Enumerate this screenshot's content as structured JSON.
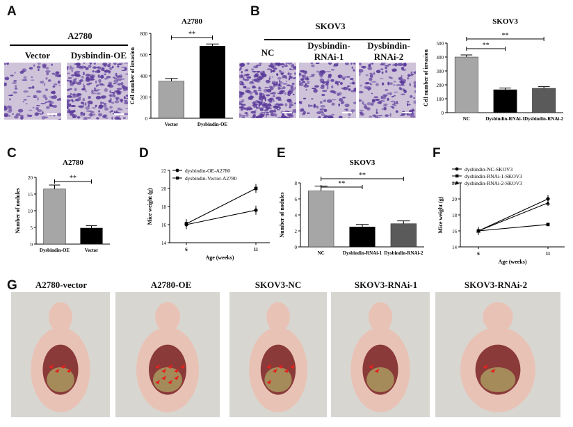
{
  "panel_letters": {
    "a": "A",
    "b": "B",
    "c": "C",
    "d": "D",
    "e": "E",
    "f": "F",
    "g": "G"
  },
  "panelA": {
    "cell_line": "A2780",
    "labels": [
      "Vector",
      "Dysbindin-OE"
    ]
  },
  "panelB": {
    "cell_line": "SKOV3",
    "labels": [
      "NC",
      "Dysbindin-\nRNAi-1",
      "Dysbindin-\nRNAi-2"
    ]
  },
  "panelG": {
    "labels": [
      "A2780-vector",
      "A2780-OE",
      "SKOV3-NC",
      "SKOV3-RNAi-1",
      "SKOV3-RNAi-2"
    ]
  },
  "colors": {
    "gray": "#a6a6a6",
    "black": "#000000",
    "dark_gray": "#5a5a5a",
    "micro_bg": "#cfc3da",
    "micro_dot": "#5a3a9a"
  },
  "chart_data": [
    {
      "id": "A",
      "type": "bar",
      "title": "A2780",
      "categories": [
        "Vector",
        "Dysbindin-OE"
      ],
      "values": [
        350,
        680
      ],
      "errors": [
        25,
        20
      ],
      "ylabel": "Cell number of invasion",
      "ylim": [
        0,
        800
      ],
      "yticks": [
        0,
        200,
        400,
        600,
        800
      ],
      "significance": [
        {
          "from": 0,
          "to": 1,
          "label": "**"
        }
      ],
      "bar_colors": [
        "#a6a6a6",
        "#000000"
      ]
    },
    {
      "id": "B",
      "type": "bar",
      "title": "SKOV3",
      "categories": [
        "NC",
        "Dysbindin-RNAi-1",
        "Dysbindin-RNAi-2"
      ],
      "values": [
        400,
        165,
        175
      ],
      "errors": [
        15,
        12,
        12
      ],
      "ylabel": "Cell number of invasion",
      "ylim": [
        0,
        500
      ],
      "yticks": [
        0,
        100,
        200,
        300,
        400,
        500
      ],
      "significance": [
        {
          "from": 0,
          "to": 1,
          "label": "**"
        },
        {
          "from": 0,
          "to": 2,
          "label": "**"
        }
      ],
      "bar_colors": [
        "#a6a6a6",
        "#000000",
        "#5a5a5a"
      ]
    },
    {
      "id": "C",
      "type": "bar",
      "title": "A2780",
      "categories": [
        "Dysbindin-OE",
        "Vector"
      ],
      "values": [
        16.5,
        4.8
      ],
      "errors": [
        1.2,
        0.7
      ],
      "ylabel": "Number of nodules",
      "ylim": [
        0,
        20
      ],
      "yticks": [
        0,
        5,
        10,
        15,
        20
      ],
      "significance": [
        {
          "from": 0,
          "to": 1,
          "label": "**"
        }
      ],
      "bar_colors": [
        "#a6a6a6",
        "#000000"
      ]
    },
    {
      "id": "D",
      "type": "line",
      "x_categories": [
        "6",
        "11"
      ],
      "xlabel": "Age (weeks)",
      "ylabel": "Mice weight (g)",
      "ylim": [
        14,
        22
      ],
      "yticks": [
        14,
        16,
        18,
        20,
        22
      ],
      "series": [
        {
          "name": "dysbindin-OE-A2780",
          "values": [
            16.0,
            17.6
          ],
          "errors": [
            0.5,
            0.5
          ],
          "marker": "circle"
        },
        {
          "name": "dysbindin-Vector-A2780",
          "values": [
            16.1,
            20.0
          ],
          "errors": [
            0.5,
            0.5
          ],
          "marker": "square"
        }
      ]
    },
    {
      "id": "E",
      "type": "bar",
      "title": "SKOV3",
      "categories": [
        "NC",
        "Dysbindin-RNAi-1",
        "Dysbindin-RNAi-2"
      ],
      "values": [
        7.0,
        2.5,
        2.9
      ],
      "errors": [
        0.6,
        0.3,
        0.35
      ],
      "ylabel": "Number of nodules",
      "ylim": [
        0,
        8
      ],
      "yticks": [
        0,
        2,
        4,
        6,
        8
      ],
      "significance": [
        {
          "from": 0,
          "to": 1,
          "label": "**"
        },
        {
          "from": 0,
          "to": 2,
          "label": "**"
        }
      ],
      "bar_colors": [
        "#a6a6a6",
        "#000000",
        "#5a5a5a"
      ]
    },
    {
      "id": "F",
      "type": "line",
      "x_categories": [
        "6",
        "11"
      ],
      "xlabel": "Age (weeks)",
      "ylabel": "Mice weight (g)",
      "ylim": [
        14,
        22
      ],
      "yticks": [
        14,
        16,
        18,
        20,
        22
      ],
      "series": [
        {
          "name": "dysbindin-NC-SKOV3",
          "values": [
            16.0,
            20.0
          ],
          "errors": [
            0.5,
            0.5
          ],
          "marker": "circle"
        },
        {
          "name": "dysbindin-RNAi-1-SKOV3",
          "values": [
            16.0,
            16.8
          ],
          "errors": [
            0.4,
            0.2
          ],
          "marker": "square"
        },
        {
          "name": "dysbindin-RNAi-2-SKOV3",
          "values": [
            16.0,
            19.5
          ],
          "errors": [
            0.5,
            0.4
          ],
          "marker": "triangle"
        }
      ]
    }
  ]
}
